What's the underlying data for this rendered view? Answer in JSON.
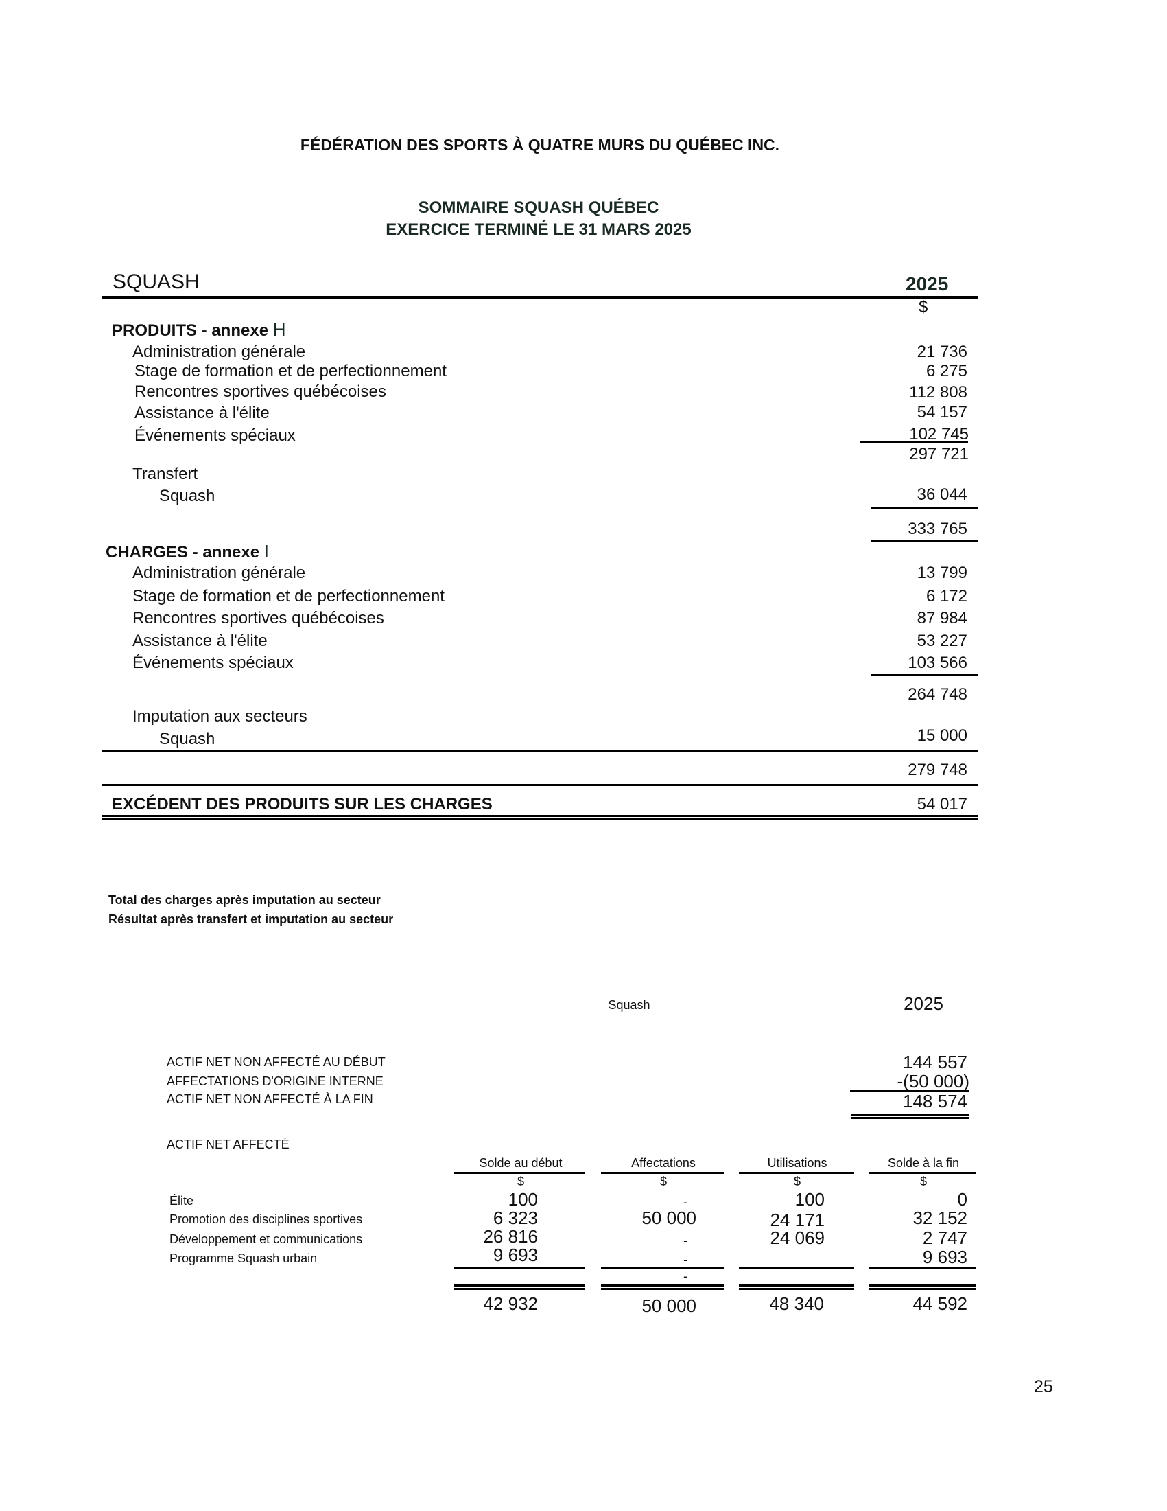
{
  "header": {
    "organization": "FÉDÉRATION DES SPORTS À QUATRE MURS DU QUÉBEC INC.",
    "title": "SOMMAIRE SQUASH QUÉBEC",
    "subtitle": "EXERCICE TERMINÉ LE 31 MARS 2025"
  },
  "statement": {
    "section": "SQUASH",
    "year": "2025",
    "currency": "$",
    "produits": {
      "heading": "PRODUITS - annexe ",
      "annex": "H",
      "items": [
        {
          "label": "Administration générale",
          "value": "21 736"
        },
        {
          "label": "Stage de formation et de perfectionnement",
          "value": "6 275"
        },
        {
          "label": "Rencontres sportives québécoises",
          "value": "112 808"
        },
        {
          "label": "Assistance à l'élite",
          "value": "54 157"
        },
        {
          "label": "Événements spéciaux",
          "value": "102 745"
        }
      ],
      "subtotal": "297 721",
      "transfer_label": "Transfert",
      "transfer_item": {
        "label": "Squash",
        "value": "36 044"
      },
      "total": "333 765"
    },
    "charges": {
      "heading": "CHARGES - annexe ",
      "annex": "I",
      "items": [
        {
          "label": "Administration générale",
          "value": "13 799"
        },
        {
          "label": "Stage de formation et de perfectionnement",
          "value": "6 172"
        },
        {
          "label": "Rencontres sportives québécoises",
          "value": "87 984"
        },
        {
          "label": "Assistance à l'élite",
          "value": "53 227"
        },
        {
          "label": "Événements spéciaux",
          "value": "103 566"
        }
      ],
      "subtotal": "264 748",
      "imputation_label": "Imputation aux secteurs",
      "imputation_item": {
        "label": "Squash",
        "value": "15 000"
      },
      "total": "279 748"
    },
    "excess": {
      "label": "EXCÉDENT DES PRODUITS SUR LES CHARGES",
      "value": "54 017"
    }
  },
  "notes": [
    "Total des charges après imputation au secteur",
    "Résultat après transfert et imputation au secteur"
  ],
  "net_assets": {
    "column_label": "Squash",
    "year": "2025",
    "unrestricted": [
      {
        "label": "ACTIF NET NON AFFECTÉ AU DÉBUT",
        "value": "144 557"
      },
      {
        "label": "AFFECTATIONS D'ORIGINE INTERNE",
        "value": "-(50 000)"
      },
      {
        "label": "ACTIF NET NON AFFECTÉ À LA FIN",
        "value": "148 574"
      }
    ],
    "restricted_heading": "ACTIF NET AFFECTÉ",
    "columns": [
      "Solde au début",
      "Affectations",
      "Utilisations",
      "Solde à la fin"
    ],
    "currency": "$",
    "rows": [
      {
        "label": "Élite",
        "values": [
          "100",
          "-",
          "100",
          "0"
        ]
      },
      {
        "label": "Promotion des disciplines sportives",
        "values": [
          "6 323",
          "50 000",
          "24 171",
          "32 152"
        ]
      },
      {
        "label": "Développement et communications",
        "values": [
          "26 816",
          "-",
          "24 069",
          "2 747"
        ]
      },
      {
        "label": "Programme Squash urbain",
        "values": [
          "9 693",
          "-",
          "",
          "9 693"
        ]
      }
    ],
    "extra_dash": "-",
    "totals": [
      "42 932",
      "50 000",
      "48 340",
      "44 592"
    ]
  },
  "page_number": "25"
}
